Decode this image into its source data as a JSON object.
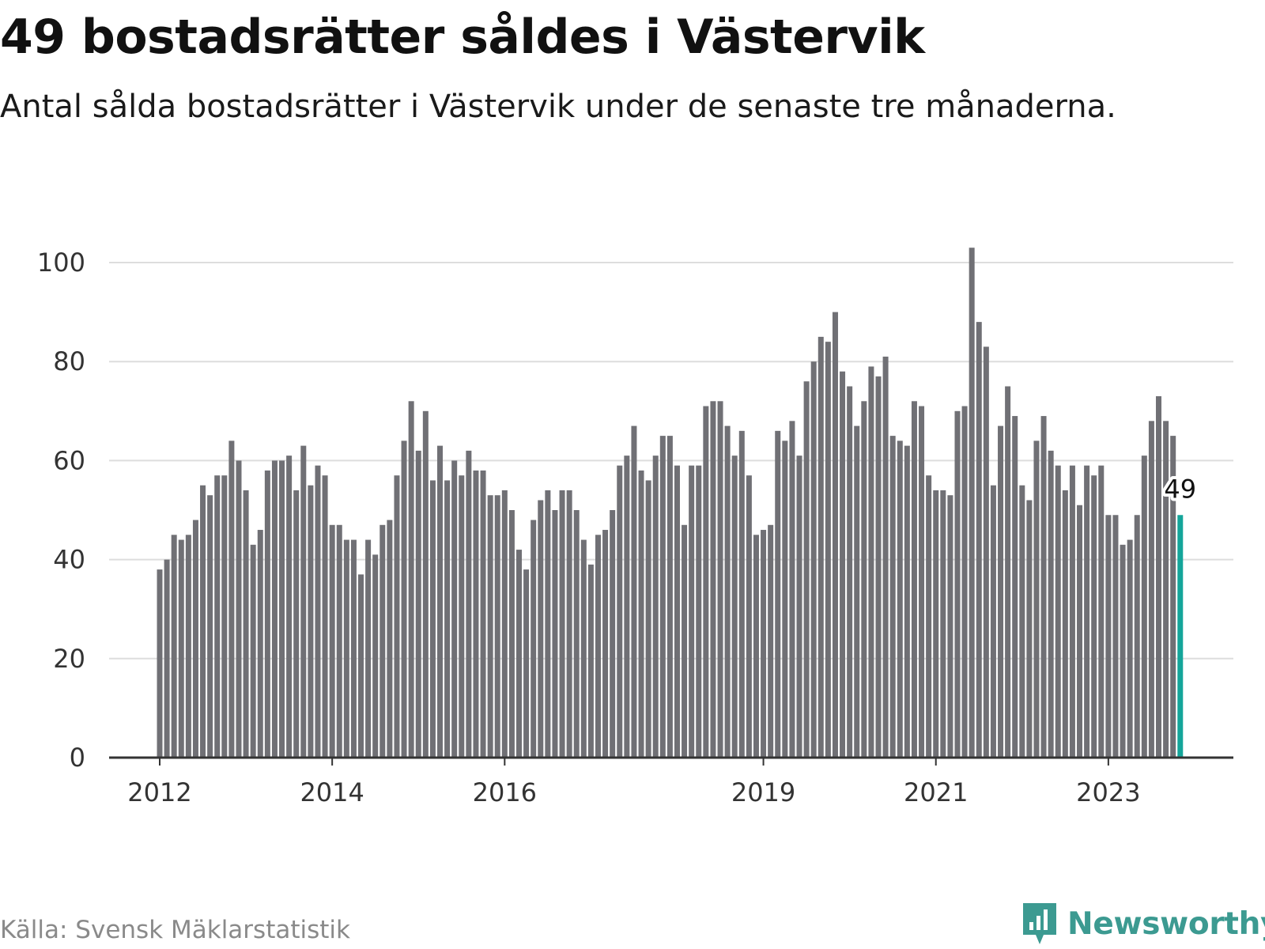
{
  "title": "49 bostadsrätter såldes i Västervik",
  "subtitle": "Antal sålda bostadsrätter i Västervik under de senaste tre månaderna.",
  "source": "Källa: Svensk Mäklarstatistik",
  "brand": {
    "name": "Newsworthy",
    "icon": "newsworthy-logo-icon"
  },
  "colors": {
    "bar": "#707075",
    "highlight": "#14a59a",
    "grid": "#dddddd",
    "axis": "#333333"
  },
  "chart_data": {
    "type": "bar",
    "title": "49 bostadsrätter såldes i Västervik",
    "xlabel": "",
    "ylabel": "",
    "ylim": [
      0,
      100
    ],
    "yticks": [
      0,
      20,
      40,
      60,
      80,
      100
    ],
    "x_tick_labels": [
      {
        "label": "2012",
        "index": 0
      },
      {
        "label": "2014",
        "index": 24
      },
      {
        "label": "2016",
        "index": 48
      },
      {
        "label": "2019",
        "index": 84
      },
      {
        "label": "2021",
        "index": 108
      },
      {
        "label": "2023",
        "index": 132
      }
    ],
    "highlight_index": 142,
    "highlight_label": "49",
    "values": [
      38,
      40,
      45,
      44,
      45,
      48,
      55,
      53,
      57,
      57,
      64,
      60,
      54,
      43,
      46,
      58,
      60,
      60,
      61,
      54,
      63,
      55,
      59,
      57,
      47,
      47,
      44,
      44,
      37,
      44,
      41,
      47,
      48,
      57,
      64,
      72,
      62,
      70,
      56,
      63,
      56,
      60,
      57,
      62,
      58,
      58,
      53,
      53,
      54,
      50,
      42,
      38,
      48,
      52,
      54,
      50,
      54,
      54,
      50,
      44,
      39,
      45,
      46,
      50,
      59,
      61,
      67,
      58,
      56,
      61,
      65,
      65,
      59,
      47,
      59,
      59,
      71,
      72,
      72,
      67,
      61,
      66,
      57,
      45,
      46,
      47,
      66,
      64,
      68,
      61,
      76,
      80,
      85,
      84,
      90,
      78,
      75,
      67,
      72,
      79,
      77,
      81,
      65,
      64,
      63,
      72,
      71,
      57,
      54,
      54,
      53,
      70,
      71,
      103,
      88,
      83,
      55,
      67,
      75,
      69,
      55,
      52,
      64,
      69,
      62,
      59,
      54,
      59,
      51,
      59,
      57,
      59,
      49,
      49,
      43,
      44,
      49,
      61,
      68,
      73,
      68,
      65,
      49
    ]
  }
}
